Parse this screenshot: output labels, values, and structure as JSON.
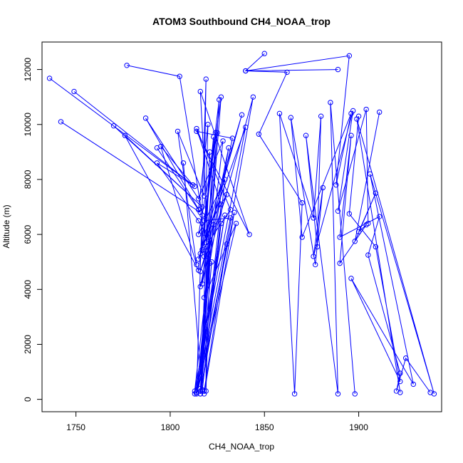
{
  "chart_data": {
    "type": "line",
    "title": "ATOM3 Southbound CH4_NOAA_trop",
    "xlabel": "CH4_NOAA_trop",
    "ylabel": "Altitude (m)",
    "xlim": [
      1732,
      1944
    ],
    "ylim": [
      -450,
      13000
    ],
    "x_ticks": [
      1750,
      1800,
      1850,
      1900
    ],
    "y_ticks": [
      0,
      2000,
      4000,
      6000,
      8000,
      10000,
      12000
    ],
    "grid": false,
    "legend": "none",
    "markers": "open-circle",
    "line_color": "#0000ff",
    "series": [
      {
        "x": [
          1736,
          1813,
          1793,
          1815,
          1820,
          1816,
          1842,
          1814,
          1833,
          1817,
          1825,
          1815,
          1829,
          1817,
          1807
        ],
        "y": [
          11680,
          7750,
          8600,
          6500,
          5900,
          11200,
          6000,
          9750,
          9500,
          4200,
          9700,
          6000,
          8000,
          300,
          8600
        ]
      },
      {
        "x": [
          1749,
          1812,
          1795,
          1814,
          1804,
          1818,
          1819,
          1814,
          1832,
          1818,
          1827,
          1815,
          1834,
          1818
        ],
        "y": [
          11200,
          7800,
          9200,
          4900,
          9750,
          7400,
          11650,
          250,
          6600,
          6500,
          11000,
          400,
          6800,
          200
        ]
      },
      {
        "x": [
          1742,
          1816,
          1787,
          1815,
          1828,
          1813,
          1840,
          1815,
          1838,
          1819,
          1821,
          1816,
          1830,
          1818
        ],
        "y": [
          10100,
          6800,
          10230,
          7300,
          9400,
          300,
          9900,
          5100,
          10350,
          5700,
          9000,
          200,
          5650,
          300
        ]
      },
      {
        "x": [
          1770,
          1817,
          1776,
          1815,
          1826,
          1816,
          1844,
          1816,
          1831,
          1818,
          1835,
          1814,
          1829,
          1813
        ],
        "y": [
          9950,
          7000,
          9600,
          4700,
          10900,
          300,
          11000,
          4100,
          9150,
          3700,
          6400,
          200,
          6700,
          200
        ]
      },
      {
        "x": [
          1777,
          1805,
          1817,
          1817,
          1823,
          1816,
          1824,
          1818,
          1830,
          1816,
          1823,
          1814,
          1827,
          1817
        ],
        "y": [
          12150,
          11750,
          6700,
          5450,
          9550,
          300,
          9700,
          6050,
          7450,
          4650,
          6350,
          250,
          6400,
          350
        ]
      },
      {
        "x": [
          1793,
          1815,
          1820,
          1818,
          1822,
          1816,
          1827,
          1814,
          1832,
          1816,
          1819,
          1819,
          1821,
          1816
        ],
        "y": [
          9150,
          6900,
          10000,
          5200,
          5000,
          200,
          7100,
          9850,
          6900,
          5300,
          5400,
          300,
          4950,
          300
        ]
      },
      {
        "x": [
          1850,
          1840,
          1862,
          1847,
          1870,
          1866,
          1858,
          1876,
          1880,
          1878,
          1872,
          1889,
          1885,
          1898
        ],
        "y": [
          12580,
          11950,
          11900,
          9650,
          7150,
          200,
          10400,
          6600,
          10300,
          5550,
          9600,
          200,
          10800,
          200
        ]
      },
      {
        "x": [
          1889,
          1840,
          1895,
          1888,
          1896,
          1870,
          1864,
          1877,
          1881,
          1876,
          1897,
          1889,
          1904,
          1905
        ],
        "y": [
          12000,
          11950,
          12500,
          7800,
          10400,
          5900,
          10250,
          4900,
          7700,
          5200,
          10500,
          6850,
          10550,
          6400
        ]
      },
      {
        "x": [
          1911,
          1898,
          1909,
          1900,
          1904,
          1890,
          1896,
          1890,
          1911,
          1905,
          1922,
          1920,
          1925,
          1938
        ],
        "y": [
          10450,
          5750,
          7500,
          6100,
          6350,
          4950,
          9600,
          5900,
          6650,
          5250,
          950,
          300,
          1500,
          250
        ]
      },
      {
        "x": [
          1900,
          1895,
          1909,
          1922,
          1896,
          1929,
          1906,
          1940,
          1899,
          1922
        ],
        "y": [
          10300,
          6750,
          5550,
          650,
          4400,
          550,
          8200,
          200,
          10200,
          250
        ]
      }
    ]
  }
}
